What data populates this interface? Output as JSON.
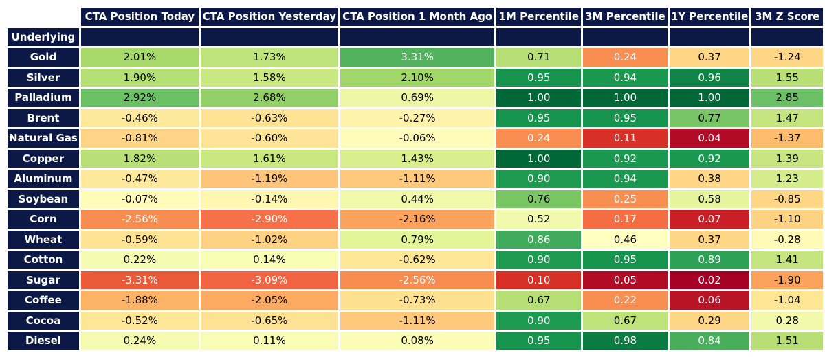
{
  "chart_data": {
    "type": "table",
    "title": "",
    "row_header_label": "Underlying",
    "columns": [
      "CTA Position Today",
      "CTA Position Yesterday",
      "CTA Position 1 Month Ago",
      "1M Percentile",
      "3M Percentile",
      "1Y Percentile",
      "3M Z Score"
    ],
    "rows": [
      {
        "name": "Gold",
        "values": [
          "2.01%",
          "1.73%",
          "3.31%",
          "0.71",
          "0.24",
          "0.37",
          "-1.24"
        ]
      },
      {
        "name": "Silver",
        "values": [
          "1.90%",
          "1.58%",
          "2.10%",
          "0.95",
          "0.94",
          "0.96",
          "1.55"
        ]
      },
      {
        "name": "Palladium",
        "values": [
          "2.92%",
          "2.68%",
          "0.69%",
          "1.00",
          "1.00",
          "1.00",
          "2.85"
        ]
      },
      {
        "name": "Brent",
        "values": [
          "-0.46%",
          "-0.63%",
          "-0.27%",
          "0.95",
          "0.95",
          "0.77",
          "1.47"
        ]
      },
      {
        "name": "Natural Gas",
        "values": [
          "-0.81%",
          "-0.60%",
          "-0.06%",
          "0.24",
          "0.11",
          "0.04",
          "-1.37"
        ]
      },
      {
        "name": "Copper",
        "values": [
          "1.82%",
          "1.61%",
          "1.43%",
          "1.00",
          "0.92",
          "0.92",
          "1.39"
        ]
      },
      {
        "name": "Aluminum",
        "values": [
          "-0.47%",
          "-1.19%",
          "-1.11%",
          "0.90",
          "0.94",
          "0.38",
          "1.23"
        ]
      },
      {
        "name": "Soybean",
        "values": [
          "-0.07%",
          "-0.14%",
          "0.44%",
          "0.76",
          "0.25",
          "0.58",
          "-0.85"
        ]
      },
      {
        "name": "Corn",
        "values": [
          "-2.56%",
          "-2.90%",
          "-2.16%",
          "0.52",
          "0.17",
          "0.07",
          "-1.10"
        ]
      },
      {
        "name": "Wheat",
        "values": [
          "-0.59%",
          "-1.02%",
          "0.79%",
          "0.86",
          "0.46",
          "0.37",
          "-0.28"
        ]
      },
      {
        "name": "Cotton",
        "values": [
          "0.22%",
          "0.14%",
          "-0.62%",
          "0.90",
          "0.95",
          "0.89",
          "1.41"
        ]
      },
      {
        "name": "Sugar",
        "values": [
          "-3.31%",
          "-3.09%",
          "-2.56%",
          "0.10",
          "0.05",
          "0.02",
          "-1.90"
        ]
      },
      {
        "name": "Coffee",
        "values": [
          "-1.88%",
          "-2.05%",
          "-0.73%",
          "0.67",
          "0.22",
          "0.06",
          "-1.04"
        ]
      },
      {
        "name": "Cocoa",
        "values": [
          "-0.52%",
          "-0.65%",
          "-1.11%",
          "0.90",
          "0.67",
          "0.29",
          "0.28"
        ]
      },
      {
        "name": "Diesel",
        "values": [
          "0.24%",
          "0.11%",
          "0.08%",
          "0.95",
          "0.98",
          "0.84",
          "1.51"
        ]
      }
    ],
    "colors": [
      [
        "#a6d96a",
        "#bfe37b",
        "#52b25d"
      ],
      [
        "#b3df74",
        "#c9e881",
        "#a1d668"
      ],
      [
        "#6cc064",
        "#92d067",
        "#ecf7a6"
      ],
      [
        "#fee89b",
        "#fee395",
        "#fff2ab"
      ],
      [
        "#fed586",
        "#fee497",
        "#fffbb8"
      ],
      [
        "#b8e077",
        "#c8e77f",
        "#d8ee8f"
      ],
      [
        "#fee89b",
        "#fec47a",
        "#fec87d"
      ],
      [
        "#fffbb8",
        "#fff7b0",
        "#f0f8a9"
      ],
      [
        "#f88d52",
        "#f67049",
        "#fba35c"
      ],
      [
        "#fee395",
        "#fed183",
        "#e4f499"
      ],
      [
        "#f5fbb2",
        "#f8fcb4",
        "#fee697"
      ],
      [
        "#ea5a39",
        "#f06444",
        "#f88d52"
      ],
      [
        "#fdb366",
        "#fca961",
        "#fee091"
      ],
      [
        "#fee697",
        "#fee294",
        "#fec87d"
      ],
      [
        "#f4fab0",
        "#f9fcb5",
        "#fbfdb7"
      ]
    ],
    "pct_colors": [
      [
        "#b5df75",
        "#f98e52",
        "#fed685",
        "#fed685"
      ],
      [
        "#16934d",
        "#1a9850",
        "#0f8446",
        "#b7df76"
      ],
      [
        "#006837",
        "#006837",
        "#006837",
        "#6bbf64"
      ],
      [
        "#16934d",
        "#16934d",
        "#78c565",
        "#c3e47f"
      ],
      [
        "#f98e52",
        "#d73027",
        "#b10b26",
        "#fdbb6c"
      ],
      [
        "#006837",
        "#1a9850",
        "#1a9850",
        "#c7e681"
      ],
      [
        "#1e9a51",
        "#1a9850",
        "#fed685",
        "#d5ec8d"
      ],
      [
        "#7ac665",
        "#f98e52",
        "#e6f59d",
        "#fed685"
      ],
      [
        "#f1f9ac",
        "#f46d43",
        "#ca1f26",
        "#fed283"
      ],
      [
        "#40ab5a",
        "#ffffbf",
        "#fed685",
        "#fffab6"
      ],
      [
        "#1e9a51",
        "#16934d",
        "#2da155",
        "#c5e581"
      ],
      [
        "#d73027",
        "#b10b26",
        "#a50026",
        "#fba35c"
      ],
      [
        "#b5df75",
        "#f98e52",
        "#b91326",
        "#fee695"
      ],
      [
        "#1e9a51",
        "#bfe37b",
        "#fed685",
        "#f2f9ad"
      ],
      [
        "#16934d",
        "#0a7c41",
        "#48ae5c",
        "#b7df76"
      ]
    ],
    "light_text": [
      [
        false,
        false,
        true,
        false,
        true,
        false,
        false
      ],
      [
        false,
        false,
        false,
        true,
        true,
        true,
        false
      ],
      [
        false,
        false,
        false,
        true,
        true,
        true,
        false
      ],
      [
        false,
        false,
        false,
        true,
        true,
        false,
        false
      ],
      [
        false,
        false,
        false,
        true,
        true,
        true,
        false
      ],
      [
        false,
        false,
        false,
        true,
        true,
        true,
        false
      ],
      [
        false,
        false,
        false,
        true,
        true,
        false,
        false
      ],
      [
        false,
        false,
        false,
        false,
        true,
        false,
        false
      ],
      [
        true,
        true,
        false,
        false,
        true,
        true,
        false
      ],
      [
        false,
        false,
        false,
        true,
        false,
        false,
        false
      ],
      [
        false,
        false,
        false,
        true,
        true,
        true,
        false
      ],
      [
        true,
        true,
        true,
        true,
        true,
        true,
        false
      ],
      [
        false,
        false,
        false,
        false,
        true,
        true,
        false
      ],
      [
        false,
        false,
        false,
        true,
        false,
        false,
        false
      ],
      [
        false,
        false,
        false,
        true,
        true,
        true,
        false
      ]
    ]
  }
}
